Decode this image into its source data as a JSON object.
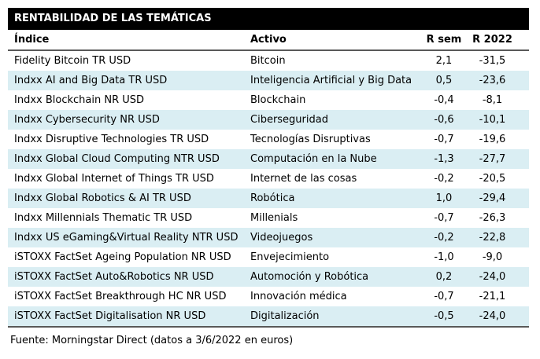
{
  "title": "RENTABILIDAD DE LAS TEMÁTICAS",
  "colors": {
    "title_bar_bg": "#000000",
    "title_bar_text": "#ffffff",
    "row_alt_bg": "#daeef3",
    "divider": "#595959",
    "text": "#000000"
  },
  "table": {
    "columns": [
      "Índice",
      "Activo",
      "R sem",
      "R 2022"
    ],
    "rows": [
      {
        "indice": "Fidelity Bitcoin TR USD",
        "activo": "Bitcoin",
        "r_sem": "2,1",
        "r_2022": "-31,5"
      },
      {
        "indice": "Indxx AI and Big Data TR USD",
        "activo": "Inteligencia Artificial y Big Data",
        "r_sem": "0,5",
        "r_2022": "-23,6"
      },
      {
        "indice": "Indxx Blockchain NR USD",
        "activo": "Blockchain",
        "r_sem": "-0,4",
        "r_2022": "-8,1"
      },
      {
        "indice": "Indxx Cybersecurity NR USD",
        "activo": "Ciberseguridad",
        "r_sem": "-0,6",
        "r_2022": "-10,1"
      },
      {
        "indice": "Indxx Disruptive Technologies TR USD",
        "activo": "Tecnologías Disruptivas",
        "r_sem": "-0,7",
        "r_2022": "-19,6"
      },
      {
        "indice": "Indxx Global Cloud Computing NTR USD",
        "activo": "Computación en la Nube",
        "r_sem": "-1,3",
        "r_2022": "-27,7"
      },
      {
        "indice": "Indxx Global Internet of Things TR USD",
        "activo": "Internet de las cosas",
        "r_sem": "-0,2",
        "r_2022": "-20,5"
      },
      {
        "indice": "Indxx Global Robotics & AI TR USD",
        "activo": "Robótica",
        "r_sem": "1,0",
        "r_2022": "-29,4"
      },
      {
        "indice": "Indxx Millennials Thematic TR USD",
        "activo": "Millenials",
        "r_sem": "-0,7",
        "r_2022": "-26,3"
      },
      {
        "indice": "Indxx US eGaming&Virtual Reality NTR USD",
        "activo": "Videojuegos",
        "r_sem": "-0,2",
        "r_2022": "-22,8"
      },
      {
        "indice": "iSTOXX FactSet Ageing Population NR USD",
        "activo": "Envejecimiento",
        "r_sem": "-1,0",
        "r_2022": "-9,0"
      },
      {
        "indice": "iSTOXX FactSet Auto&Robotics NR USD",
        "activo": "Automoción y Robótica",
        "r_sem": "0,2",
        "r_2022": "-24,0"
      },
      {
        "indice": "iSTOXX FactSet Breakthrough HC NR USD",
        "activo": "Innovación médica",
        "r_sem": "-0,7",
        "r_2022": "-21,1"
      },
      {
        "indice": "iSTOXX FactSet Digitalisation NR USD",
        "activo": "Digitalización",
        "r_sem": "-0,5",
        "r_2022": "-24,0"
      }
    ]
  },
  "footer": "Fuente: Morningstar Direct (datos a 3/6/2022 en euros)"
}
